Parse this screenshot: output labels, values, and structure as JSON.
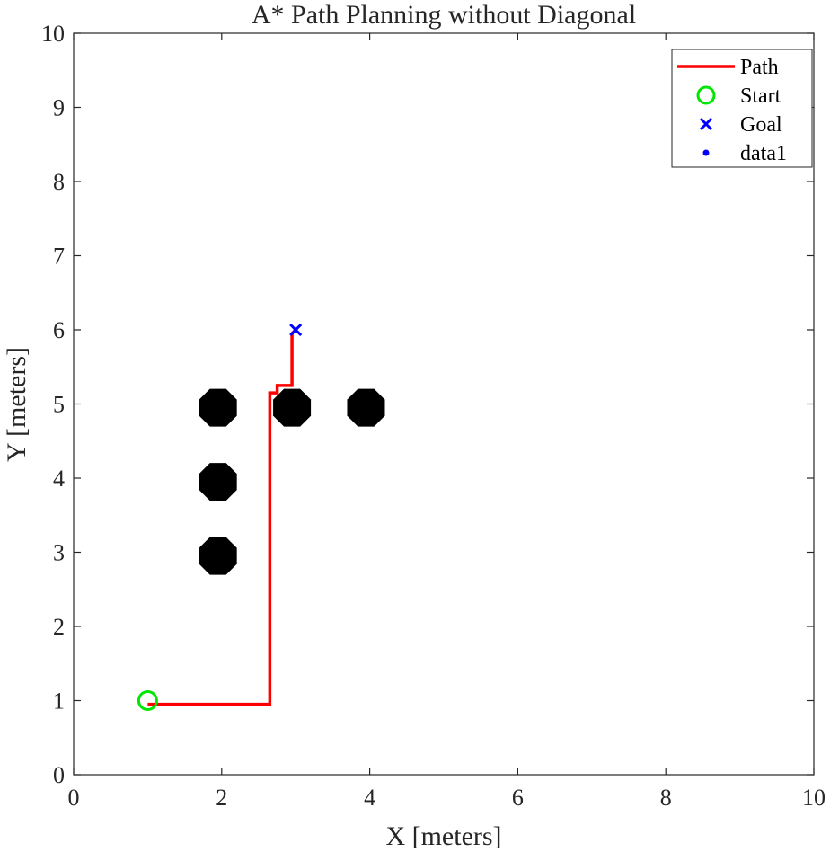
{
  "chart_data": {
    "type": "line",
    "title": "A* Path Planning without Diagonal",
    "xlabel": "X [meters]",
    "ylabel": "Y [meters]",
    "xlim": [
      0,
      10
    ],
    "ylim": [
      0,
      10
    ],
    "xticks": [
      "0",
      "2",
      "4",
      "6",
      "8",
      "10"
    ],
    "yticks": [
      "0",
      "1",
      "2",
      "3",
      "4",
      "5",
      "6",
      "7",
      "8",
      "9",
      "10"
    ],
    "grid": false,
    "legend_position": "top-right",
    "series": [
      {
        "name": "Path",
        "kind": "line",
        "color": "#ff0000",
        "x": [
          1.0,
          2.65,
          2.65,
          2.75,
          2.75,
          2.95,
          2.95,
          2.99
        ],
        "y": [
          0.95,
          0.95,
          5.15,
          5.15,
          5.25,
          5.25,
          5.95,
          5.99
        ]
      },
      {
        "name": "Start",
        "kind": "marker-circle",
        "color": "#00e600",
        "x": [
          1.0
        ],
        "y": [
          1.0
        ]
      },
      {
        "name": "Goal",
        "kind": "marker-x",
        "color": "#0000ff",
        "x": [
          3.0
        ],
        "y": [
          6.0
        ]
      },
      {
        "name": "data1",
        "kind": "marker-dot",
        "color": "#0000ff",
        "x": [],
        "y": []
      }
    ],
    "obstacles": {
      "color": "#000000",
      "points": [
        {
          "x": 1.95,
          "y": 4.95
        },
        {
          "x": 2.95,
          "y": 4.95
        },
        {
          "x": 3.95,
          "y": 4.95
        },
        {
          "x": 1.95,
          "y": 3.95
        },
        {
          "x": 1.95,
          "y": 2.95
        }
      ]
    }
  }
}
